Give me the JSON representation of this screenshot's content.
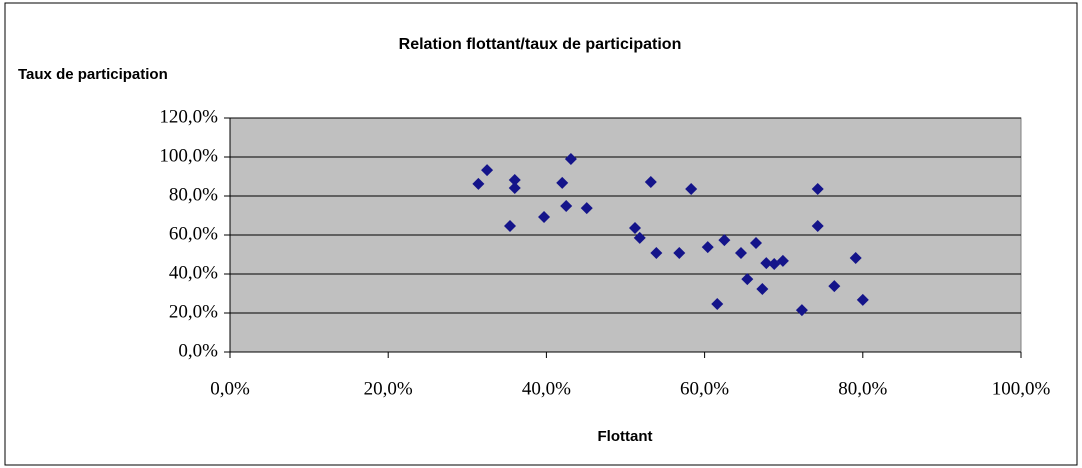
{
  "chart_data": {
    "type": "scatter",
    "title": "Relation flottant/taux de participation",
    "y_label": "Taux de participation",
    "x_label": "Flottant",
    "color": "#14148a",
    "plot_background": "#c0c0c0",
    "grid": true,
    "x": [
      31.4,
      32.5,
      36.0,
      36.0,
      35.4,
      39.7,
      42.0,
      42.5,
      43.1,
      45.1,
      51.2,
      51.8,
      53.2,
      53.9,
      56.8,
      58.3,
      60.4,
      62.5,
      61.6,
      64.6,
      65.4,
      66.5,
      67.3,
      67.8,
      68.8,
      69.9,
      72.3,
      74.3,
      74.3,
      76.4,
      79.1,
      80.0
    ],
    "values": [
      86.2,
      93.3,
      88.2,
      84.1,
      64.6,
      69.2,
      86.7,
      74.9,
      99.0,
      73.8,
      63.6,
      58.5,
      87.2,
      50.8,
      50.8,
      83.6,
      53.8,
      57.4,
      24.6,
      50.8,
      37.4,
      55.9,
      32.3,
      45.6,
      45.1,
      46.7,
      21.5,
      83.6,
      64.6,
      33.8,
      48.2,
      26.7
    ],
    "xlim": [
      0,
      100
    ],
    "xticks": [
      {
        "value": 0,
        "label": "0,0%"
      },
      {
        "value": 20,
        "label": "20,0%"
      },
      {
        "value": 40,
        "label": "40,0%"
      },
      {
        "value": 60,
        "label": "60,0%"
      },
      {
        "value": 80,
        "label": "80,0%"
      },
      {
        "value": 100,
        "label": "100,0%"
      }
    ],
    "ylim": [
      0,
      120
    ],
    "yticks": [
      {
        "value": 0,
        "label": "0,0%"
      },
      {
        "value": 20,
        "label": "20,0%"
      },
      {
        "value": 40,
        "label": "40,0%"
      },
      {
        "value": 60,
        "label": "60,0%"
      },
      {
        "value": 80,
        "label": "80,0%"
      },
      {
        "value": 100,
        "label": "100,0%"
      },
      {
        "value": 120,
        "label": "120,0%"
      }
    ]
  }
}
